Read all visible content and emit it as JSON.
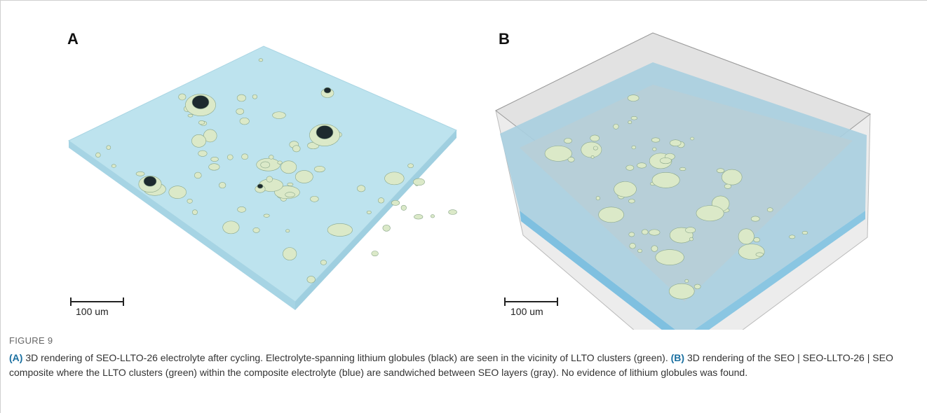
{
  "panels": [
    {
      "label": "A",
      "scale_bar": "100 um"
    },
    {
      "label": "B",
      "scale_bar": "100 um"
    }
  ],
  "figure_label": "FIGURE 9",
  "caption": [
    {
      "label": "(A)",
      "text": "3D rendering of SEO-LLTO-26 electrolyte after cycling. Electrolyte-spanning lithium globules (black) are seen in the vicinity of LLTO clusters (green)."
    },
    {
      "label": "(B)",
      "text": "3D rendering of the SEO | SEO-LLTO-26 | SEO composite where the LLTO clusters (green) within the composite electrolyte (blue) are sandwiched between SEO layers (gray). No evidence of lithium globules was found."
    }
  ]
}
